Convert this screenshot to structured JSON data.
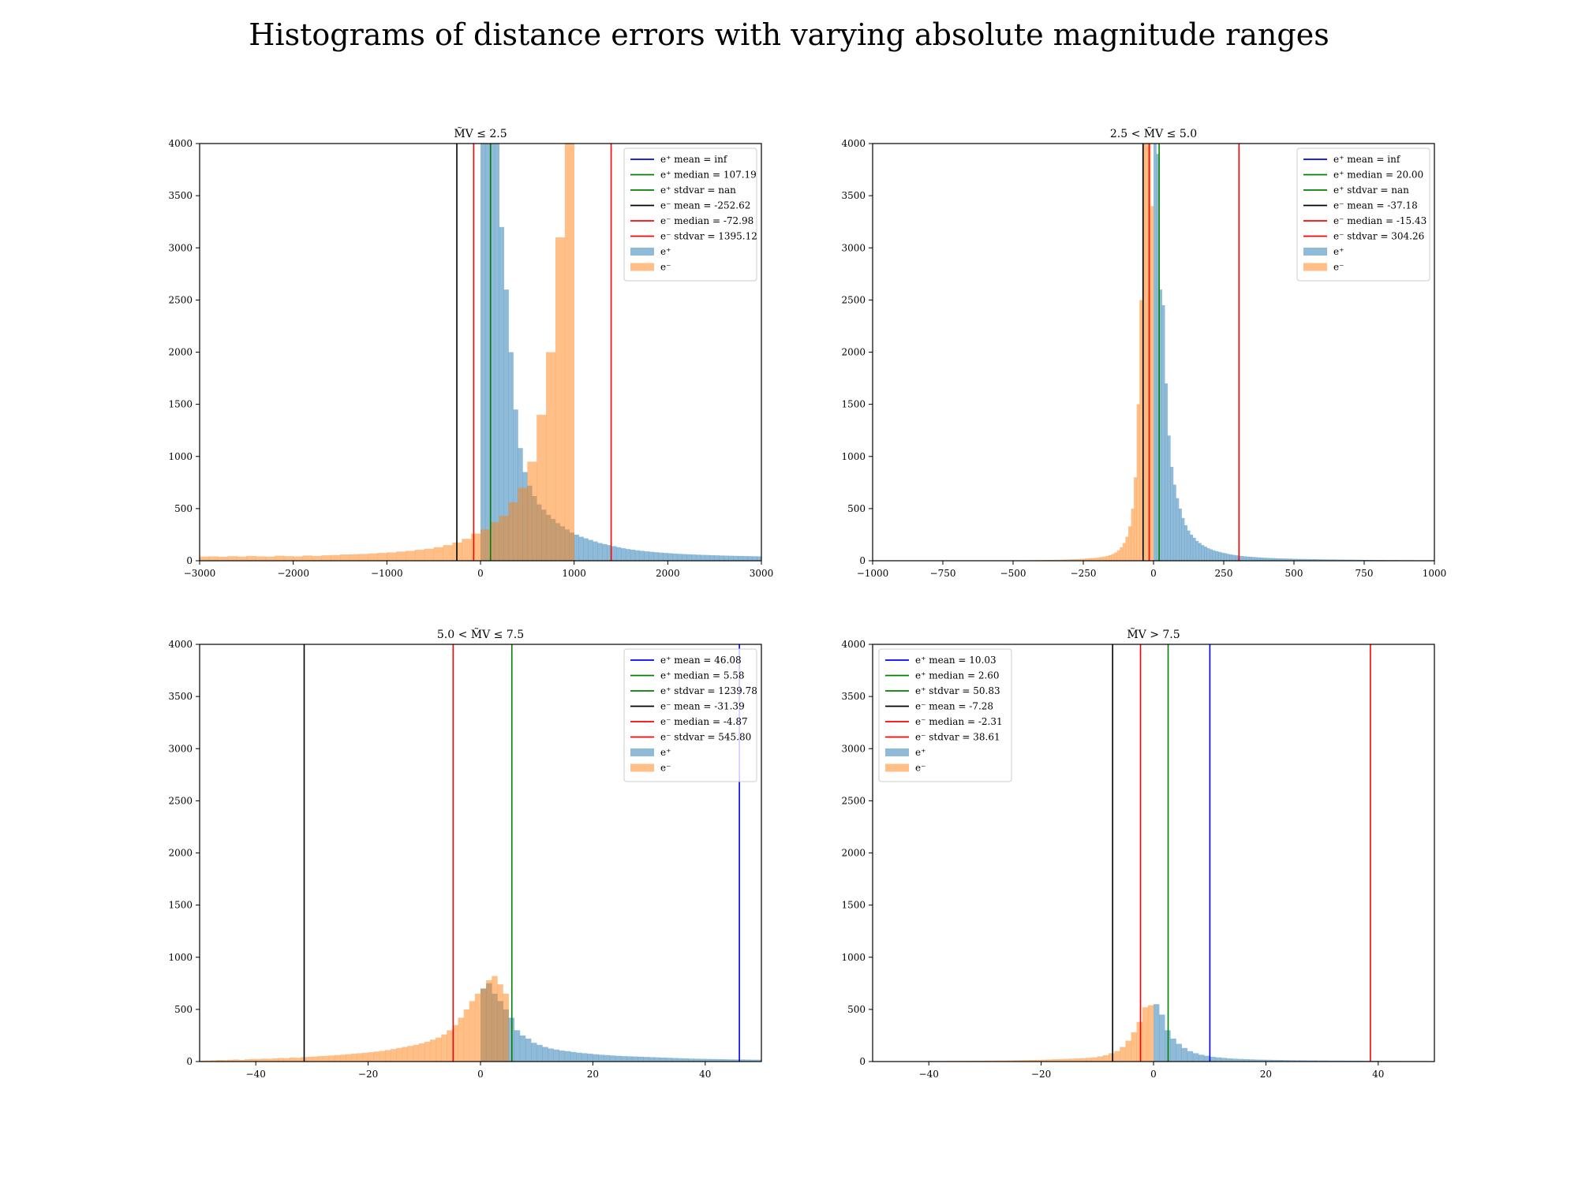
{
  "figure_title": "Histograms of distance errors with varying absolute magnitude ranges",
  "colors": {
    "e_plus": "#1f77b4",
    "e_minus": "#ff7f0e",
    "line_blue": "#0000ff",
    "line_green": "#008000",
    "line_black": "#000000",
    "line_red": "#ff0000"
  },
  "chart_data": [
    {
      "type": "bar",
      "title": "M̃V ≤ 2.5",
      "xlim": [
        -3000,
        3000
      ],
      "ylim": [
        0,
        4000
      ],
      "xticks": [
        -3000,
        -2000,
        -1000,
        0,
        1000,
        2000,
        3000
      ],
      "xtick_labels": [
        "−3000",
        "−2000",
        "−1000",
        "0",
        "1000",
        "2000",
        "3000"
      ],
      "yticks": [
        0,
        500,
        1000,
        1500,
        2000,
        2500,
        3000,
        3500,
        4000
      ],
      "legend_position": "top-right",
      "legend": [
        {
          "label": "e⁺ mean = inf",
          "kind": "line",
          "color": "#0000ff"
        },
        {
          "label": "e⁺ median = 107.19",
          "kind": "line",
          "color": "#008000"
        },
        {
          "label": "e⁺ stdvar = nan",
          "kind": "line",
          "color": "#008000"
        },
        {
          "label": "e⁻ mean = -252.62",
          "kind": "line",
          "color": "#000000"
        },
        {
          "label": "e⁻ median = -72.98",
          "kind": "line",
          "color": "#ff0000"
        },
        {
          "label": "e⁻ stdvar = 1395.12",
          "kind": "line",
          "color": "#ff0000"
        },
        {
          "label": "e⁺",
          "kind": "patch",
          "color": "#1f77b4"
        },
        {
          "label": "e⁻",
          "kind": "patch",
          "color": "#ff7f0e"
        }
      ],
      "vlines": [
        {
          "x": -252.62,
          "color": "#000000"
        },
        {
          "x": -72.98,
          "color": "#ff0000"
        },
        {
          "x": 107.19,
          "color": "#008000"
        },
        {
          "x": 1395.12,
          "color": "#ff0000"
        }
      ],
      "series": [
        {
          "name": "e⁻",
          "color": "#ff7f0e",
          "bin_start": -3000,
          "bin_width": 100,
          "values": [
            40,
            42,
            38,
            44,
            40,
            46,
            42,
            40,
            48,
            44,
            42,
            50,
            46,
            52,
            55,
            60,
            62,
            65,
            70,
            75,
            80,
            88,
            95,
            105,
            115,
            130,
            150,
            175,
            210,
            260,
            300,
            370,
            430,
            560,
            700,
            950,
            1400,
            2000,
            3100,
            4000
          ]
        },
        {
          "name": "e⁺",
          "color": "#1f77b4",
          "bin_start": 0,
          "bin_width": 50,
          "values": [
            4000,
            4000,
            4000,
            4000,
            3200,
            2600,
            2000,
            1450,
            1080,
            850,
            720,
            620,
            540,
            490,
            440,
            400,
            360,
            330,
            300,
            270,
            250,
            230,
            215,
            200,
            185,
            170,
            160,
            150,
            140,
            130,
            120,
            112,
            106,
            100,
            95,
            90,
            86,
            82,
            78,
            75,
            72,
            69,
            66,
            64,
            62,
            60,
            58,
            56,
            55,
            53,
            52,
            50,
            49,
            48,
            47,
            46,
            45,
            44,
            43,
            42
          ]
        }
      ]
    },
    {
      "type": "bar",
      "title": "2.5 < M̃V ≤ 5.0",
      "xlim": [
        -1000,
        1000
      ],
      "ylim": [
        0,
        4000
      ],
      "xticks": [
        -1000,
        -750,
        -500,
        -250,
        0,
        250,
        500,
        750,
        1000
      ],
      "xtick_labels": [
        "−1000",
        "−750",
        "−500",
        "−250",
        "0",
        "250",
        "500",
        "750",
        "1000"
      ],
      "yticks": [
        0,
        500,
        1000,
        1500,
        2000,
        2500,
        3000,
        3500,
        4000
      ],
      "legend_position": "top-right",
      "legend": [
        {
          "label": "e⁺ mean = inf",
          "kind": "line",
          "color": "#0000ff"
        },
        {
          "label": "e⁺ median = 20.00",
          "kind": "line",
          "color": "#008000"
        },
        {
          "label": "e⁺ stdvar = nan",
          "kind": "line",
          "color": "#008000"
        },
        {
          "label": "e⁻ mean = -37.18",
          "kind": "line",
          "color": "#000000"
        },
        {
          "label": "e⁻ median = -15.43",
          "kind": "line",
          "color": "#ff0000"
        },
        {
          "label": "e⁻ stdvar = 304.26",
          "kind": "line",
          "color": "#ff0000"
        },
        {
          "label": "e⁺",
          "kind": "patch",
          "color": "#1f77b4"
        },
        {
          "label": "e⁻",
          "kind": "patch",
          "color": "#ff7f0e"
        }
      ],
      "vlines": [
        {
          "x": -37.18,
          "color": "#000000"
        },
        {
          "x": -15.43,
          "color": "#ff0000"
        },
        {
          "x": 20.0,
          "color": "#008000"
        },
        {
          "x": 304.26,
          "color": "#ff0000"
        }
      ],
      "series": [
        {
          "name": "e⁻",
          "color": "#ff7f0e",
          "bin_start": -500,
          "bin_width": 10,
          "values": [
            3,
            3,
            4,
            4,
            4,
            5,
            5,
            5,
            6,
            6,
            6,
            7,
            7,
            8,
            8,
            9,
            9,
            10,
            11,
            12,
            13,
            14,
            15,
            16,
            18,
            20,
            22,
            24,
            26,
            28,
            32,
            36,
            40,
            46,
            55,
            65,
            80,
            100,
            130,
            170,
            230,
            330,
            500,
            800,
            1500,
            2500,
            4000,
            4000,
            4000,
            3400
          ]
        },
        {
          "name": "e⁺",
          "color": "#1f77b4",
          "bin_start": 0,
          "bin_width": 10,
          "values": [
            4000,
            3900,
            2600,
            2450,
            1700,
            1200,
            900,
            730,
            600,
            500,
            410,
            340,
            290,
            250,
            220,
            190,
            170,
            150,
            135,
            120,
            110,
            100,
            92,
            85,
            78,
            72,
            66,
            60,
            56,
            52,
            48,
            45,
            42,
            40,
            38,
            36,
            34,
            32,
            30,
            28,
            27,
            26,
            25,
            24,
            23,
            22,
            21,
            20,
            20,
            19,
            18,
            18,
            17,
            17,
            16,
            16,
            15,
            15,
            14,
            14,
            13,
            13,
            12,
            12,
            12,
            11,
            11,
            11,
            10,
            10,
            10,
            9,
            9,
            9,
            8,
            8,
            8,
            8,
            7,
            7,
            7,
            7,
            6,
            6,
            6,
            6,
            6,
            5,
            5,
            5,
            5,
            5,
            5,
            4,
            4,
            4,
            4,
            4,
            4,
            4
          ]
        }
      ]
    },
    {
      "type": "bar",
      "title": "5.0 < M̃V ≤ 7.5",
      "xlim": [
        -50,
        50
      ],
      "ylim": [
        0,
        4000
      ],
      "xticks": [
        -40,
        -20,
        0,
        20,
        40
      ],
      "xtick_labels": [
        "−40",
        "−20",
        "0",
        "20",
        "40"
      ],
      "yticks": [
        0,
        500,
        1000,
        1500,
        2000,
        2500,
        3000,
        3500,
        4000
      ],
      "legend_position": "top-right",
      "legend": [
        {
          "label": "e⁺ mean = 46.08",
          "kind": "line",
          "color": "#0000ff"
        },
        {
          "label": "e⁺ median = 5.58",
          "kind": "line",
          "color": "#008000"
        },
        {
          "label": "e⁺ stdvar = 1239.78",
          "kind": "line",
          "color": "#008000"
        },
        {
          "label": "e⁻ mean = -31.39",
          "kind": "line",
          "color": "#000000"
        },
        {
          "label": "e⁻ median = -4.87",
          "kind": "line",
          "color": "#ff0000"
        },
        {
          "label": "e⁻ stdvar = 545.80",
          "kind": "line",
          "color": "#ff0000"
        },
        {
          "label": "e⁺",
          "kind": "patch",
          "color": "#1f77b4"
        },
        {
          "label": "e⁻",
          "kind": "patch",
          "color": "#ff7f0e"
        }
      ],
      "vlines": [
        {
          "x": -31.39,
          "color": "#000000"
        },
        {
          "x": -4.87,
          "color": "#ff0000"
        },
        {
          "x": 5.58,
          "color": "#008000"
        },
        {
          "x": 46.08,
          "color": "#0000ff"
        }
      ],
      "series": [
        {
          "name": "e⁻",
          "color": "#ff7f0e",
          "bin_start": -50,
          "bin_width": 1,
          "values": [
            8,
            10,
            12,
            15,
            14,
            18,
            20,
            16,
            22,
            25,
            24,
            28,
            26,
            30,
            34,
            32,
            38,
            36,
            42,
            45,
            48,
            52,
            55,
            58,
            62,
            66,
            70,
            75,
            80,
            85,
            90,
            96,
            102,
            110,
            120,
            130,
            140,
            150,
            160,
            175,
            190,
            210,
            230,
            260,
            300,
            350,
            420,
            500,
            580,
            650,
            700,
            780,
            820,
            740,
            650
          ]
        },
        {
          "name": "e⁺",
          "color": "#1f77b4",
          "bin_start": 0,
          "bin_width": 1,
          "values": [
            700,
            750,
            650,
            580,
            500,
            420,
            300,
            250,
            220,
            180,
            160,
            140,
            125,
            115,
            105,
            100,
            92,
            85,
            80,
            75,
            70,
            65,
            62,
            58,
            55,
            52,
            50,
            48,
            46,
            44,
            42,
            40,
            38,
            36,
            34,
            32,
            30,
            28,
            27,
            26,
            25,
            24,
            23,
            22,
            21,
            20,
            20,
            19,
            18,
            18
          ]
        }
      ]
    },
    {
      "type": "bar",
      "title": "M̃V > 7.5",
      "xlim": [
        -50,
        50
      ],
      "ylim": [
        0,
        4000
      ],
      "xticks": [
        -40,
        -20,
        0,
        20,
        40
      ],
      "xtick_labels": [
        "−40",
        "−20",
        "0",
        "20",
        "40"
      ],
      "yticks": [
        0,
        500,
        1000,
        1500,
        2000,
        2500,
        3000,
        3500,
        4000
      ],
      "legend_position": "top-left",
      "legend": [
        {
          "label": "e⁺ mean = 10.03",
          "kind": "line",
          "color": "#0000ff"
        },
        {
          "label": "e⁺ median = 2.60",
          "kind": "line",
          "color": "#008000"
        },
        {
          "label": "e⁺ stdvar = 50.83",
          "kind": "line",
          "color": "#008000"
        },
        {
          "label": "e⁻ mean = -7.28",
          "kind": "line",
          "color": "#000000"
        },
        {
          "label": "e⁻ median = -2.31",
          "kind": "line",
          "color": "#ff0000"
        },
        {
          "label": "e⁻ stdvar = 38.61",
          "kind": "line",
          "color": "#ff0000"
        },
        {
          "label": "e⁺",
          "kind": "patch",
          "color": "#1f77b4"
        },
        {
          "label": "e⁻",
          "kind": "patch",
          "color": "#ff7f0e"
        }
      ],
      "vlines": [
        {
          "x": -7.28,
          "color": "#000000"
        },
        {
          "x": -2.31,
          "color": "#ff0000"
        },
        {
          "x": 2.6,
          "color": "#008000"
        },
        {
          "x": 10.03,
          "color": "#0000ff"
        },
        {
          "x": 38.61,
          "color": "#ff0000"
        }
      ],
      "series": [
        {
          "name": "e⁻",
          "color": "#ff7f0e",
          "bin_start": -50,
          "bin_width": 1,
          "values": [
            2,
            2,
            3,
            3,
            3,
            3,
            4,
            4,
            4,
            4,
            5,
            5,
            5,
            6,
            6,
            6,
            7,
            7,
            8,
            8,
            9,
            9,
            10,
            10,
            11,
            12,
            13,
            14,
            15,
            16,
            18,
            20,
            22,
            24,
            26,
            28,
            30,
            33,
            36,
            40,
            50,
            60,
            80,
            100,
            140,
            200,
            280,
            380,
            520,
            540
          ]
        },
        {
          "name": "e⁺",
          "color": "#1f77b4",
          "bin_start": 0,
          "bin_width": 1,
          "values": [
            550,
            450,
            300,
            220,
            170,
            130,
            100,
            80,
            65,
            55,
            45,
            40,
            35,
            30,
            27,
            25,
            23,
            21,
            19,
            18,
            17,
            16,
            15,
            14,
            13,
            12,
            12,
            11,
            11,
            10,
            10,
            9,
            9,
            9,
            8,
            8,
            8,
            7,
            7,
            7,
            6,
            6,
            6,
            6,
            5,
            5,
            5,
            5,
            5,
            4
          ]
        }
      ]
    }
  ]
}
